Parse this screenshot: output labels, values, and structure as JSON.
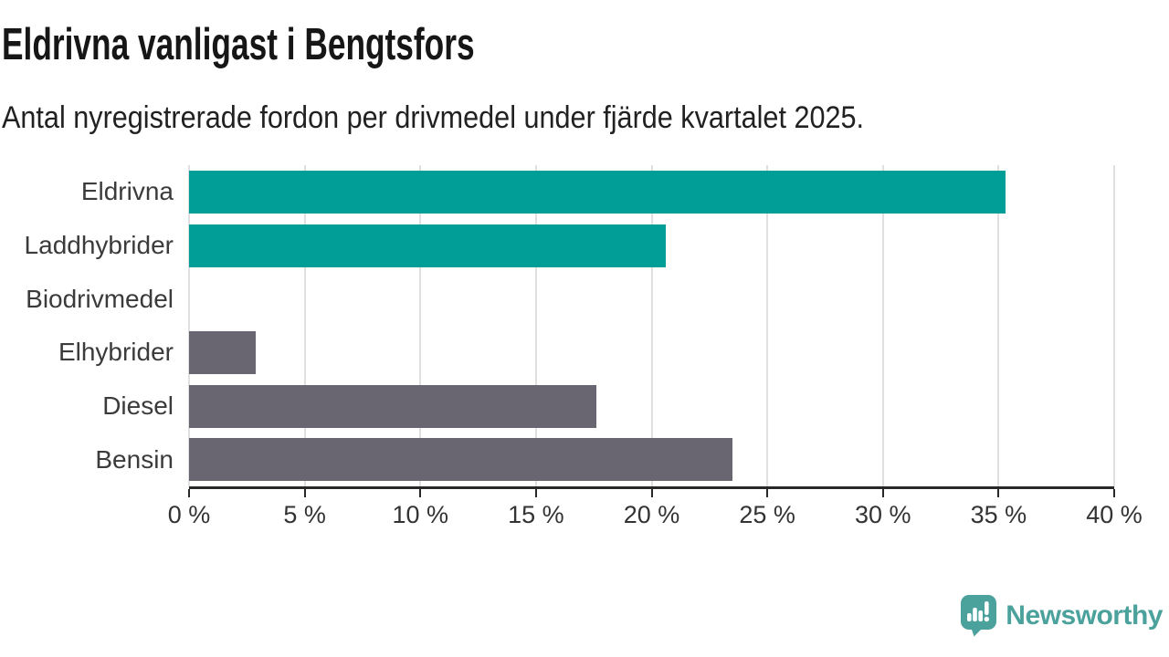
{
  "header": {
    "title": "Eldrivna vanligast i Bengtsfors",
    "subtitle": "Antal nyregistrerade fordon per drivmedel under fjärde kvartalet 2025."
  },
  "chart_data": {
    "type": "bar",
    "orientation": "horizontal",
    "title": "Eldrivna vanligast i Bengtsfors",
    "subtitle": "Antal nyregistrerade fordon per drivmedel under fjärde kvartalet 2025.",
    "categories": [
      "Eldrivna",
      "Laddhybrider",
      "Biodrivmedel",
      "Elhybrider",
      "Diesel",
      "Bensin"
    ],
    "values": [
      35.3,
      20.6,
      0,
      2.9,
      17.6,
      23.5
    ],
    "unit": "%",
    "series_colors": [
      "#009e96",
      "#009e96",
      "#696571",
      "#696571",
      "#696571",
      "#696571"
    ],
    "xlim": [
      0,
      40
    ],
    "x_ticks": [
      0,
      5,
      10,
      15,
      20,
      25,
      30,
      35,
      40
    ],
    "x_tick_labels": [
      "0 %",
      "5 %",
      "10 %",
      "15 %",
      "20 %",
      "25 %",
      "30 %",
      "35 %",
      "40 %"
    ],
    "grid": true,
    "legend": "none",
    "highlight_color": "#009e96",
    "default_color": "#696571"
  },
  "branding": {
    "logo_text": "Newsworthy",
    "logo_color": "#4ba19b",
    "logo_icon": "bar-chart-speech-bubble"
  },
  "colors": {
    "background": "#ffffff",
    "grid": "#e0e0e0",
    "axis": "#282828",
    "title_text": "#161616",
    "label_text": "#3b3b3b"
  }
}
